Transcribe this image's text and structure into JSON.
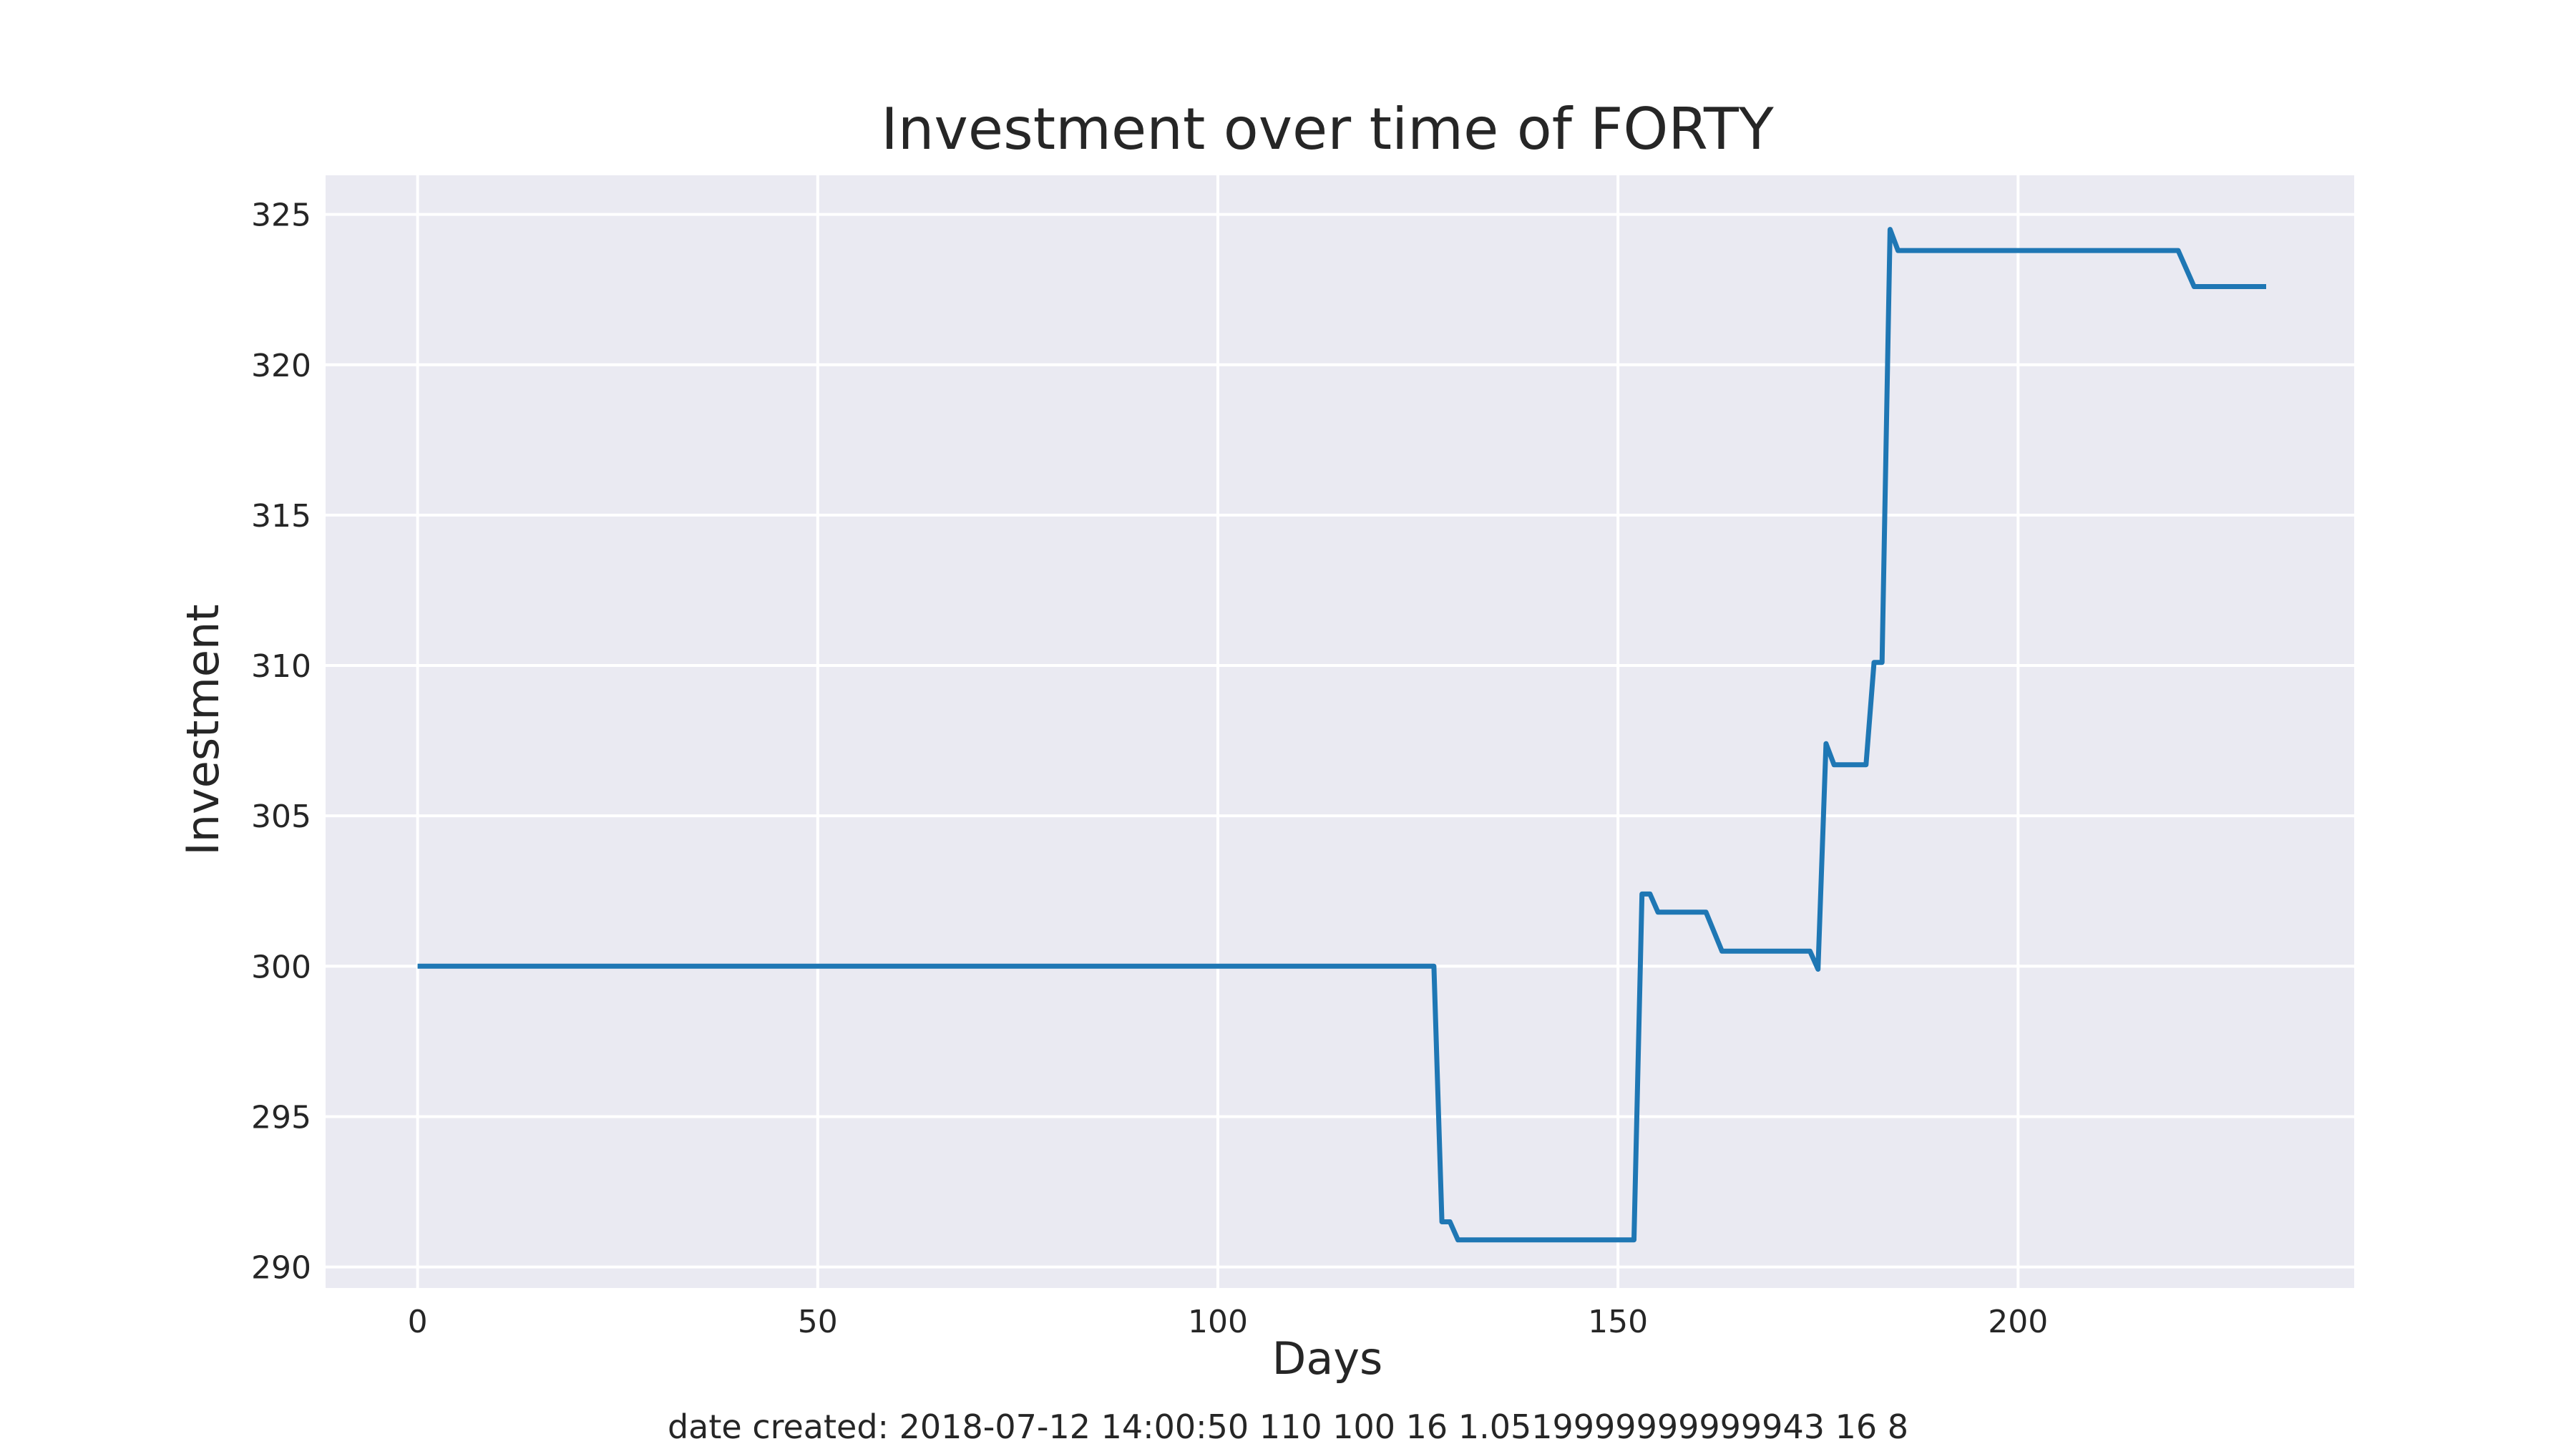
{
  "chart_data": {
    "type": "line",
    "title": "Investment over time of FORTY",
    "xlabel": "Days",
    "ylabel": "Investment",
    "xlim": [
      -11.5,
      242
    ],
    "ylim": [
      289.3,
      326.3
    ],
    "x_ticks": [
      0,
      50,
      100,
      150,
      200
    ],
    "y_ticks": [
      290,
      295,
      300,
      305,
      310,
      315,
      320,
      325
    ],
    "grid": true,
    "legend": "none",
    "colors": {
      "line": "#1f77b4",
      "plot_bg": "#eaeaf2",
      "grid": "#ffffff",
      "text": "#262626"
    },
    "series": [
      {
        "x": [
          0,
          127,
          128,
          129,
          130,
          152,
          153,
          154,
          155,
          161,
          163,
          174,
          175,
          176,
          177,
          181,
          182,
          183,
          184,
          185,
          220,
          222,
          231
        ],
        "y": [
          300,
          300,
          291.5,
          291.5,
          290.9,
          290.9,
          302.4,
          302.4,
          301.8,
          301.8,
          300.5,
          300.5,
          299.9,
          307.4,
          306.7,
          306.7,
          310.1,
          310.1,
          324.5,
          323.8,
          323.8,
          322.6,
          322.6
        ]
      }
    ]
  },
  "footer": {
    "text": "date created: 2018-07-12 14:00:50 110 100 16 1.0519999999999943 16 8"
  }
}
